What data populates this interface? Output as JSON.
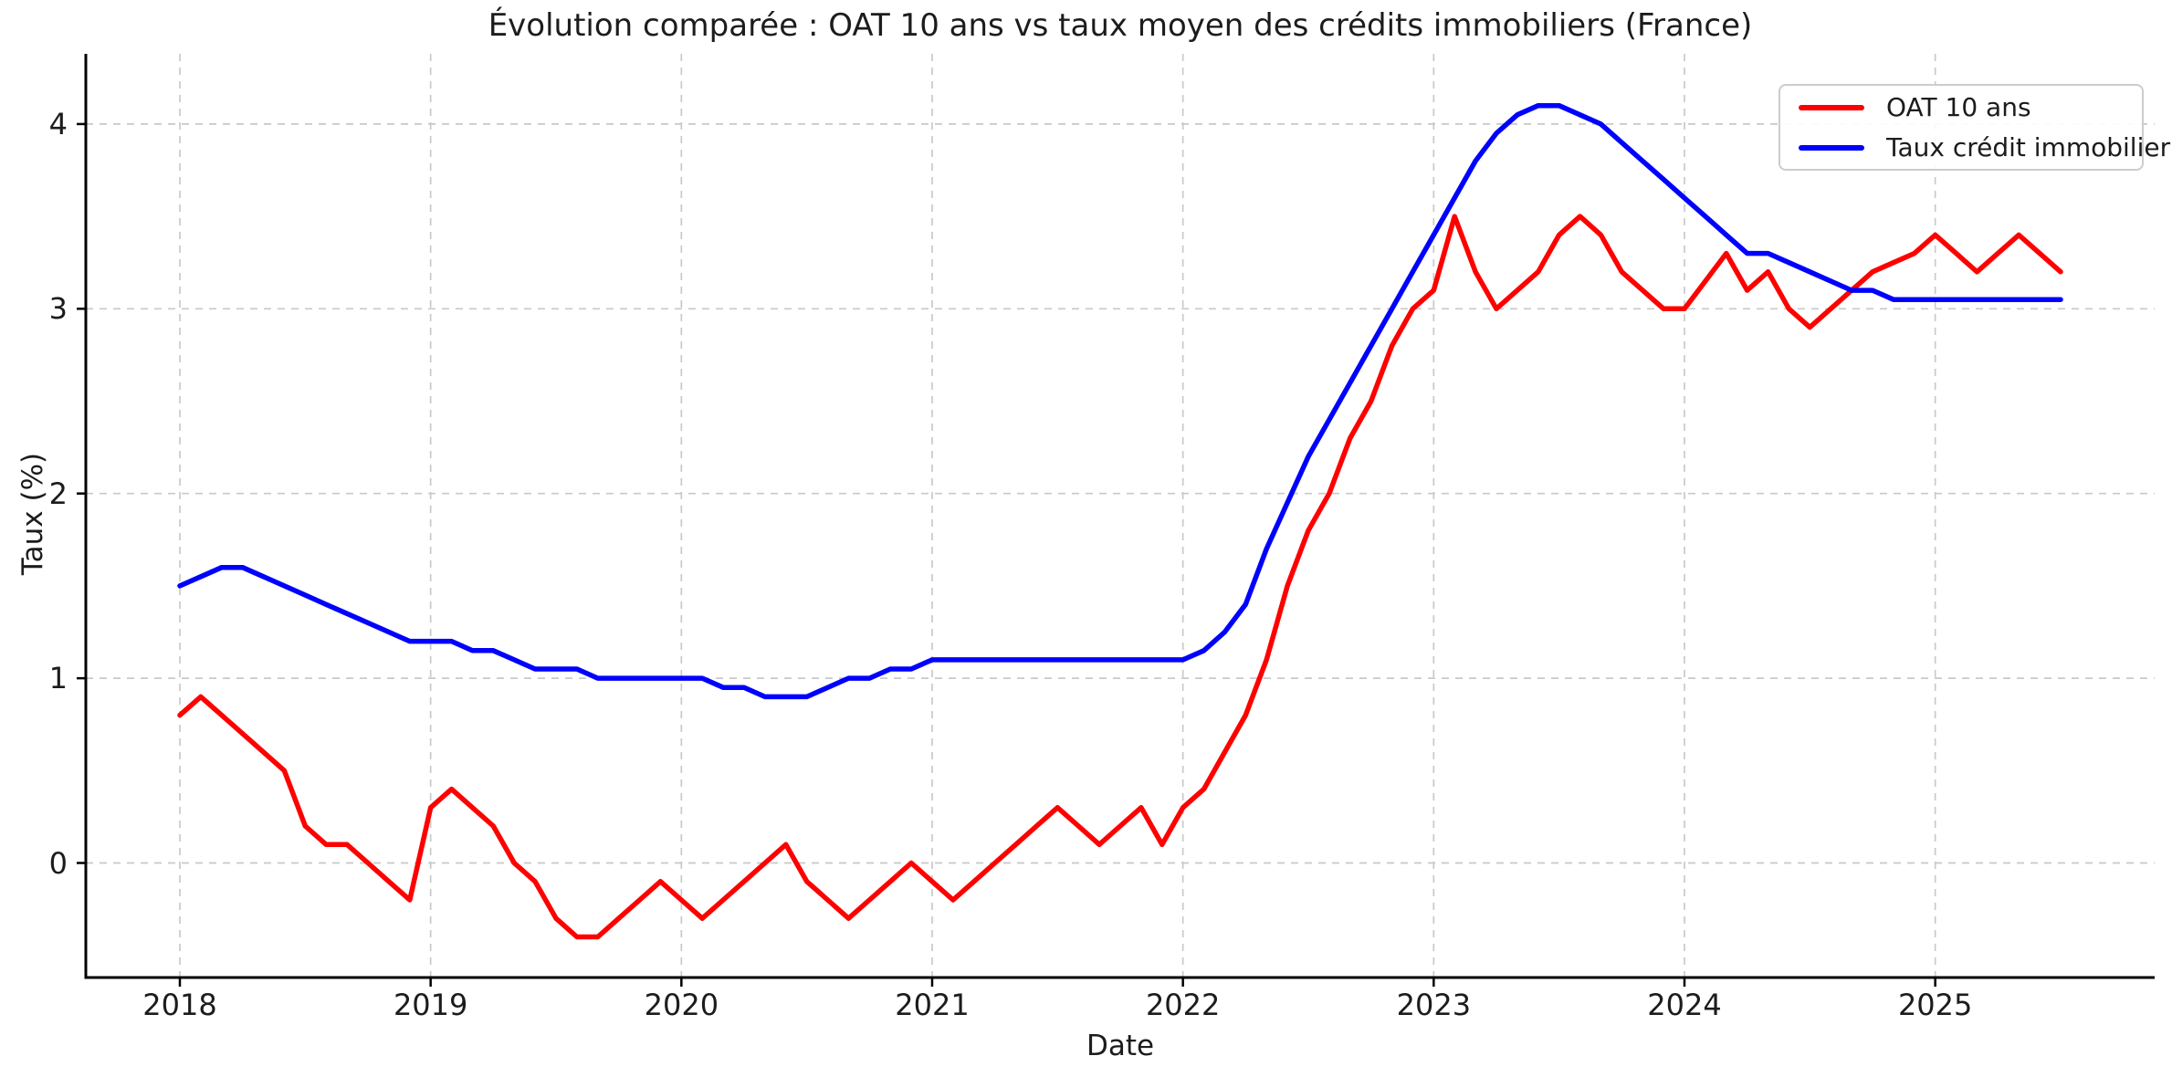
{
  "chart_data": {
    "type": "line",
    "title": "Évolution comparée : OAT 10 ans vs taux moyen des crédits immobiliers (France)",
    "xlabel": "Date",
    "ylabel": "Taux (%)",
    "xlim": [
      2017.625,
      2025.875
    ],
    "ylim": [
      -0.62,
      4.38
    ],
    "xticks": [
      2018,
      2019,
      2020,
      2021,
      2022,
      2023,
      2024,
      2025
    ],
    "xtick_labels": [
      "2018",
      "2019",
      "2020",
      "2021",
      "2022",
      "2023",
      "2024",
      "2025"
    ],
    "yticks": [
      0,
      1,
      2,
      3,
      4
    ],
    "ytick_labels": [
      "0",
      "1",
      "2",
      "3",
      "4"
    ],
    "grid": true,
    "grid_color": "#c9c9c9",
    "background_color": "#ffffff",
    "axis_color": "#000000",
    "legend_position": "upper right",
    "x_start_year": 2018,
    "x_step": "monthly",
    "x_end_year": 2025.5,
    "series": [
      {
        "name": "OAT 10 ans",
        "color": "#ff0000",
        "values": [
          0.8,
          0.9,
          0.8,
          0.7,
          0.6,
          0.5,
          0.2,
          0.1,
          0.1,
          0.0,
          -0.1,
          -0.2,
          0.3,
          0.4,
          0.3,
          0.2,
          0.0,
          -0.1,
          -0.3,
          -0.4,
          -0.4,
          -0.3,
          -0.2,
          -0.1,
          -0.2,
          -0.3,
          -0.2,
          -0.1,
          0.0,
          0.1,
          -0.1,
          -0.2,
          -0.3,
          -0.2,
          -0.1,
          0.0,
          -0.1,
          -0.2,
          -0.1,
          0.0,
          0.1,
          0.2,
          0.3,
          0.2,
          0.1,
          0.2,
          0.3,
          0.1,
          0.3,
          0.4,
          0.6,
          0.8,
          1.1,
          1.5,
          1.8,
          2.0,
          2.3,
          2.5,
          2.8,
          3.0,
          3.1,
          3.5,
          3.2,
          3.0,
          3.1,
          3.2,
          3.4,
          3.5,
          3.4,
          3.2,
          3.1,
          3.0,
          3.0,
          3.15,
          3.3,
          3.1,
          3.2,
          3.0,
          2.9,
          3.0,
          3.1,
          3.2,
          3.25,
          3.3,
          3.4,
          3.3,
          3.2,
          3.3,
          3.4,
          3.3,
          3.2
        ]
      },
      {
        "name": "Taux crédit immobilier",
        "color": "#0000ff",
        "values": [
          1.5,
          1.55,
          1.6,
          1.6,
          1.55,
          1.5,
          1.45,
          1.4,
          1.35,
          1.3,
          1.25,
          1.2,
          1.2,
          1.2,
          1.15,
          1.15,
          1.1,
          1.05,
          1.05,
          1.05,
          1.0,
          1.0,
          1.0,
          1.0,
          1.0,
          1.0,
          0.95,
          0.95,
          0.9,
          0.9,
          0.9,
          0.95,
          1.0,
          1.0,
          1.05,
          1.05,
          1.1,
          1.1,
          1.1,
          1.1,
          1.1,
          1.1,
          1.1,
          1.1,
          1.1,
          1.1,
          1.1,
          1.1,
          1.1,
          1.15,
          1.25,
          1.4,
          1.7,
          1.95,
          2.2,
          2.4,
          2.6,
          2.8,
          3.0,
          3.2,
          3.4,
          3.6,
          3.8,
          3.95,
          4.05,
          4.1,
          4.1,
          4.05,
          4.0,
          3.9,
          3.8,
          3.7,
          3.6,
          3.5,
          3.4,
          3.3,
          3.3,
          3.25,
          3.2,
          3.15,
          3.1,
          3.1,
          3.05,
          3.05,
          3.05,
          3.05,
          3.05,
          3.05,
          3.05,
          3.05,
          3.05
        ]
      }
    ]
  }
}
